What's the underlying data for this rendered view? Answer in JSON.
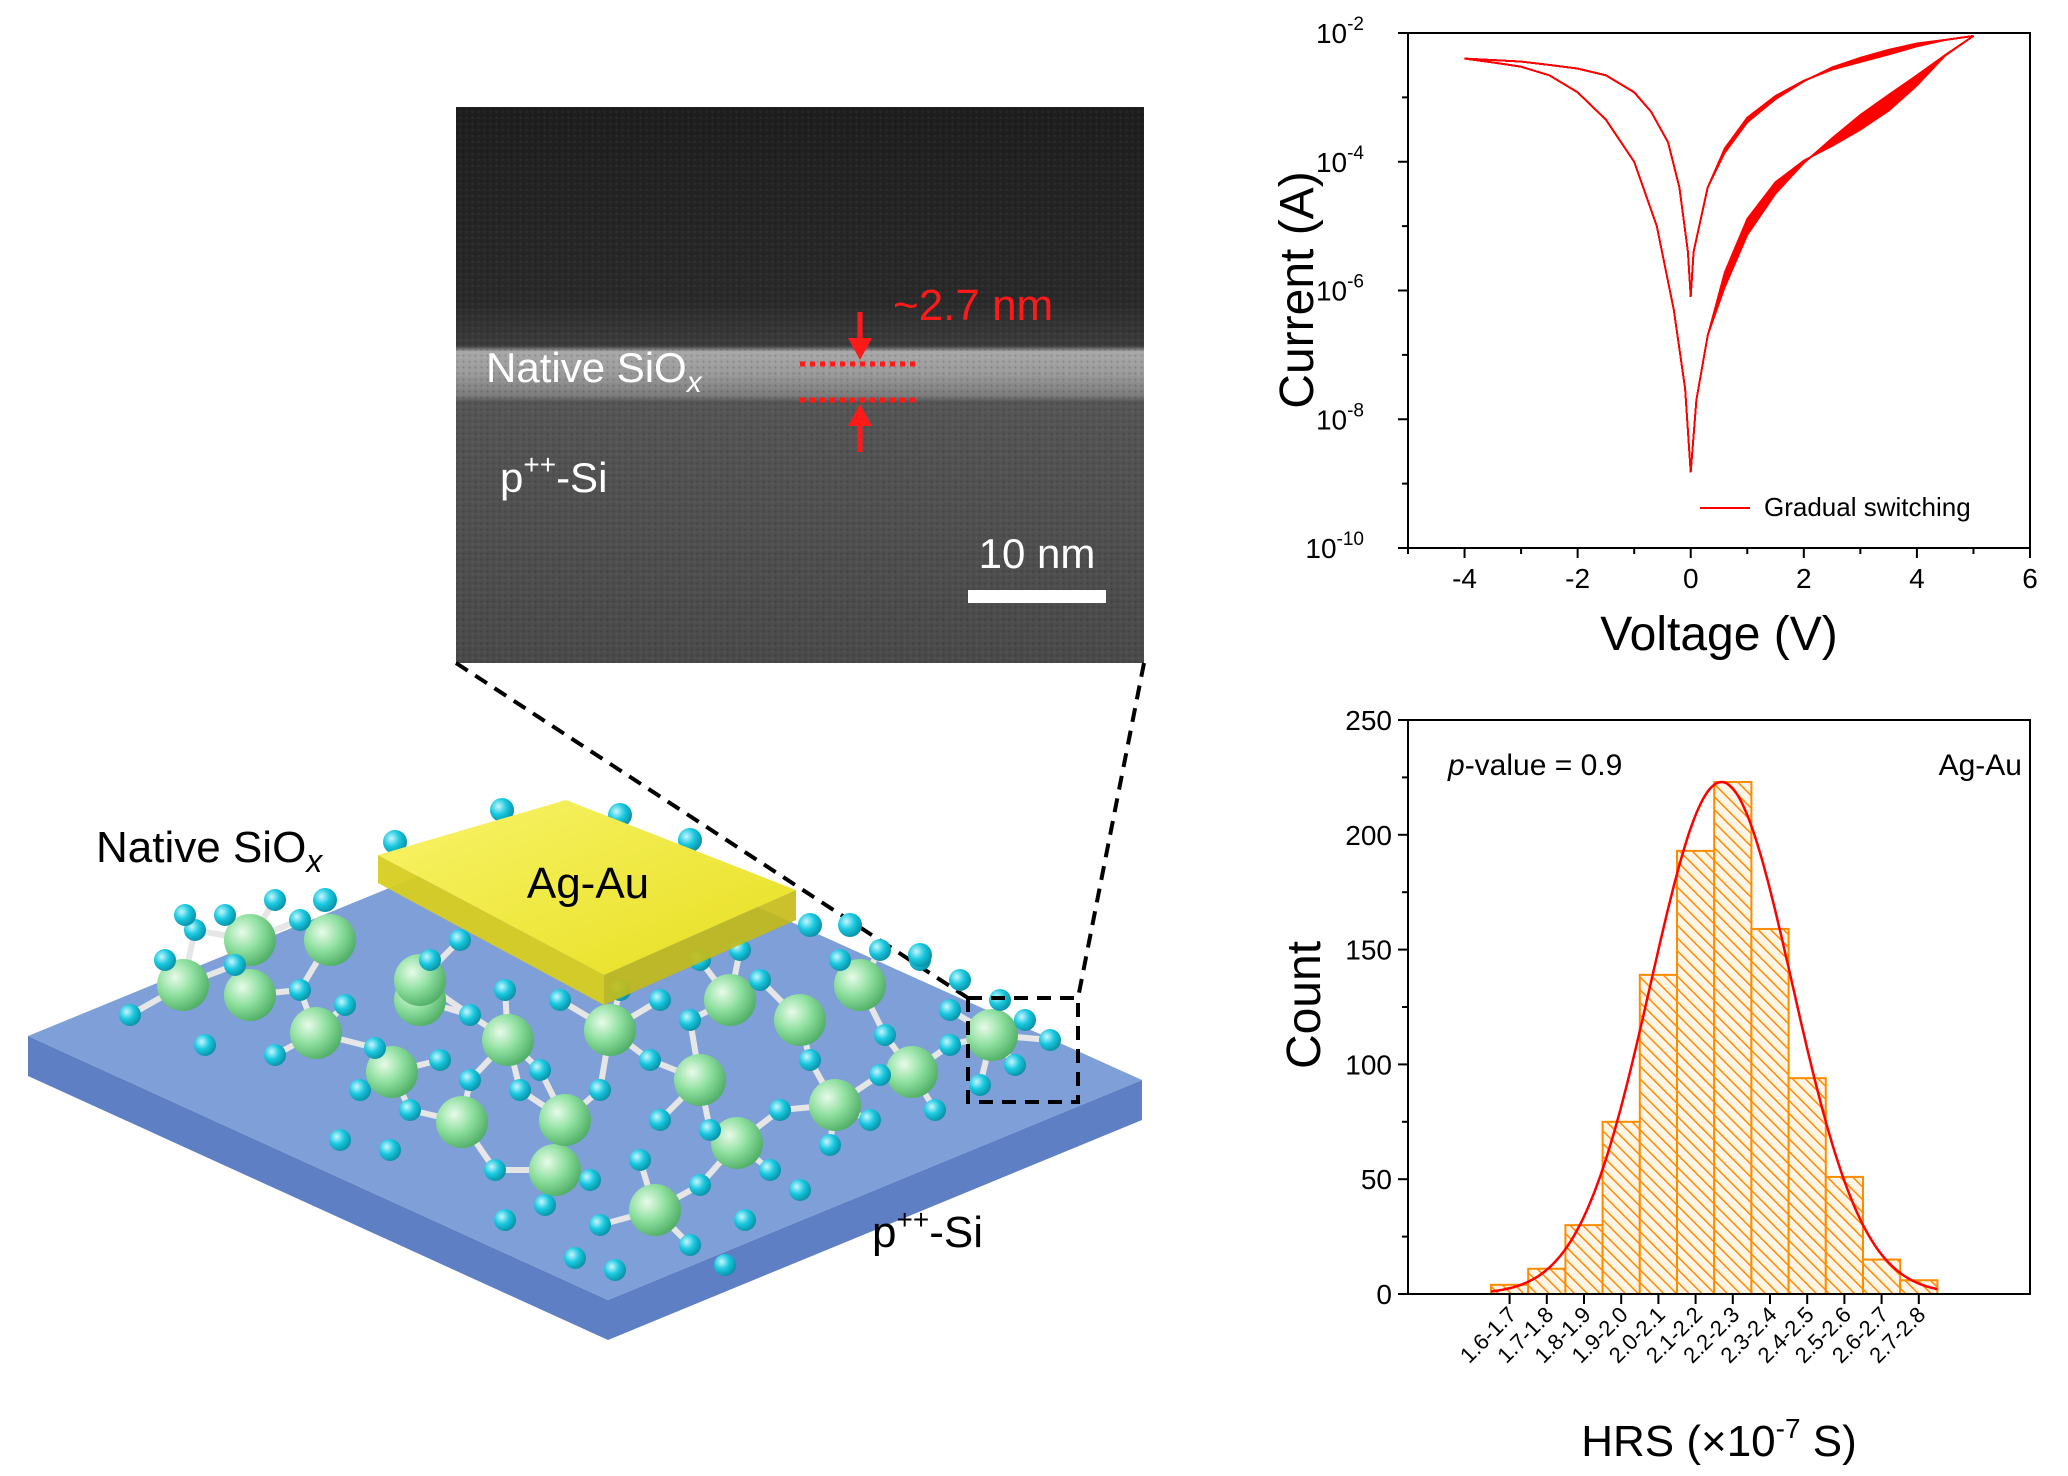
{
  "tem": {
    "native_label": "Native SiO",
    "native_sub": "x",
    "thickness_label": "~2.7 nm",
    "si_label": "p",
    "si_sup": "++",
    "si_tail": "-Si",
    "scalebar_label": "10 nm"
  },
  "schematic": {
    "native_label": "Native SiO",
    "native_sub": "x",
    "electrode_label": "Ag-Au",
    "si_label": "p",
    "si_sup": "++",
    "si_tail": "-Si"
  },
  "colors": {
    "curve": "#ff0000",
    "bar_stroke": "#ff8c00",
    "substrate": "#7f9fd9",
    "electrode": "#f2ec2a",
    "atom_large": "#8fe0a0",
    "atom_small": "#18c8df"
  },
  "chart_data": [
    {
      "type": "line",
      "xlabel": "Voltage (V)",
      "ylabel": "Current (A)",
      "xlim": [
        -5,
        6
      ],
      "ylim_exponent": [
        -10,
        -2
      ],
      "yscale": "log",
      "xticks": [
        "-4",
        "-2",
        "0",
        "2",
        "4",
        "6"
      ],
      "yticks": [
        {
          "base": "10",
          "exp": "-10"
        },
        {
          "base": "10",
          "exp": "-8"
        },
        {
          "base": "10",
          "exp": "-6"
        },
        {
          "base": "10",
          "exp": "-4"
        },
        {
          "base": "10",
          "exp": "-2"
        }
      ],
      "legend": "Gradual switching",
      "legend_position": "bottom-right",
      "series": [
        {
          "name": "Gradual switching",
          "upper": {
            "x": [
              -4,
              -3.5,
              -3,
              -2.5,
              -2,
              -1.5,
              -1,
              -0.7,
              -0.4,
              -0.2,
              -0.05,
              0,
              0.05,
              0.3,
              0.6,
              1,
              1.5,
              2,
              2.5,
              3,
              3.5,
              4,
              4.5,
              5
            ],
            "y": [
              0.004,
              0.0038,
              0.0036,
              0.0032,
              0.0028,
              0.0022,
              0.0012,
              0.0006,
              0.0002,
              4e-05,
              4e-06,
              8e-07,
              4e-06,
              4e-05,
              0.00015,
              0.00045,
              0.001,
              0.0018,
              0.0028,
              0.0038,
              0.005,
              0.0065,
              0.0078,
              0.009
            ]
          },
          "lower": {
            "x": [
              -4,
              -3.5,
              -3,
              -2.5,
              -2,
              -1.5,
              -1,
              -0.6,
              -0.3,
              -0.1,
              0,
              0.1,
              0.3,
              0.6,
              1,
              1.5,
              2,
              2.5,
              3,
              3.5,
              4,
              4.5,
              5
            ],
            "y": [
              0.004,
              0.0035,
              0.003,
              0.0022,
              0.0012,
              0.00045,
              0.0001,
              1e-05,
              5e-07,
              3e-08,
              1.5e-09,
              2e-08,
              2e-07,
              1.5e-06,
              1e-05,
              4e-05,
              0.0001,
              0.0002,
              0.0004,
              0.0008,
              0.0018,
              0.0045,
              0.009
            ]
          }
        }
      ]
    },
    {
      "type": "bar",
      "xlabel_pre": "HRS (×10",
      "xlabel_exp": "-7",
      "xlabel_post": " S)",
      "ylabel": "Count",
      "ylim": [
        0,
        250
      ],
      "yticks": [
        "0",
        "50",
        "100",
        "150",
        "200",
        "250"
      ],
      "annotation_italic": "p",
      "annotation_rest": "-value = 0.9",
      "legend": "Ag-Au",
      "legend_position": "top-right",
      "categories": [
        "1.6-1.7",
        "1.7-1.8",
        "1.8-1.9",
        "1.9-2.0",
        "2.0-2.1",
        "2.1-2.2",
        "2.2-2.3",
        "2.3-2.4",
        "2.4-2.5",
        "2.5-2.6",
        "2.6-2.7",
        "2.7-2.8"
      ],
      "values": [
        4,
        11,
        30,
        75,
        139,
        193,
        223,
        159,
        94,
        51,
        15,
        6
      ],
      "fit": "gaussian"
    }
  ]
}
